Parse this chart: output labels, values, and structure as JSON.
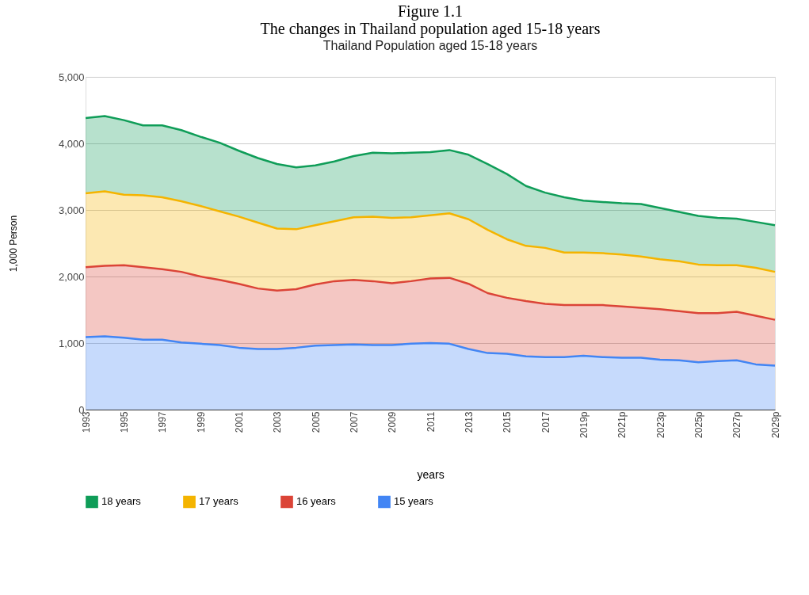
{
  "chart_data": {
    "type": "area",
    "stacked": true,
    "title": "Figure 1.1\nThe changes in Thailand population aged 15-18 years",
    "subtitle": "Thailand Population aged 15-18 years",
    "xlabel": "years",
    "ylabel": "1,000 Person",
    "categories": [
      "1993",
      null,
      "1995",
      null,
      "1997",
      null,
      "1999",
      null,
      "2001",
      null,
      "2003",
      null,
      "2005",
      null,
      "2007",
      null,
      "2009",
      null,
      "2011",
      null,
      "2013",
      null,
      "2015",
      null,
      "2017",
      null,
      "2019p",
      null,
      "2021p",
      null,
      "2023p",
      null,
      "2025p",
      null,
      "2027p",
      null,
      "2029p"
    ],
    "series": [
      {
        "name": "15 years",
        "color": "#4285f4",
        "values": [
          1090,
          1100,
          1080,
          1050,
          1050,
          1010,
          990,
          970,
          930,
          910,
          910,
          930,
          960,
          970,
          980,
          970,
          970,
          990,
          1000,
          990,
          910,
          850,
          840,
          800,
          790,
          790,
          810,
          790,
          780,
          780,
          750,
          740,
          710,
          730,
          740,
          680,
          660
        ]
      },
      {
        "name": "16 years",
        "color": "#db4437",
        "values": [
          1050,
          1060,
          1090,
          1090,
          1060,
          1060,
          1010,
          980,
          960,
          910,
          880,
          880,
          920,
          960,
          970,
          960,
          930,
          940,
          970,
          990,
          980,
          900,
          840,
          830,
          800,
          780,
          760,
          780,
          770,
          750,
          760,
          740,
          740,
          720,
          730,
          730,
          690
        ]
      },
      {
        "name": "17 years",
        "color": "#f4b400",
        "values": [
          1110,
          1120,
          1060,
          1080,
          1080,
          1060,
          1060,
          1030,
          1010,
          990,
          930,
          900,
          890,
          900,
          940,
          970,
          980,
          960,
          950,
          970,
          970,
          950,
          880,
          830,
          840,
          790,
          790,
          780,
          780,
          770,
          750,
          750,
          730,
          720,
          700,
          720,
          720
        ]
      },
      {
        "name": "18 years",
        "color": "#0f9d58",
        "values": [
          1130,
          1130,
          1120,
          1050,
          1080,
          1070,
          1040,
          1030,
          990,
          970,
          970,
          930,
          900,
          900,
          920,
          960,
          970,
          970,
          950,
          950,
          970,
          990,
          980,
          900,
          830,
          830,
          780,
          770,
          770,
          790,
          770,
          740,
          730,
          710,
          700,
          690,
          700
        ]
      }
    ],
    "ylim": [
      0,
      5000
    ],
    "yticks": [
      0,
      {
        "value": 1000,
        "label": "1,000"
      },
      {
        "value": 2000,
        "label": "2,000"
      },
      {
        "value": 3000,
        "label": "3,000"
      },
      {
        "value": 4000,
        "label": "4,000"
      },
      {
        "value": 5000,
        "label": "5,000"
      }
    ],
    "grid": "y",
    "legend": "bottom"
  }
}
